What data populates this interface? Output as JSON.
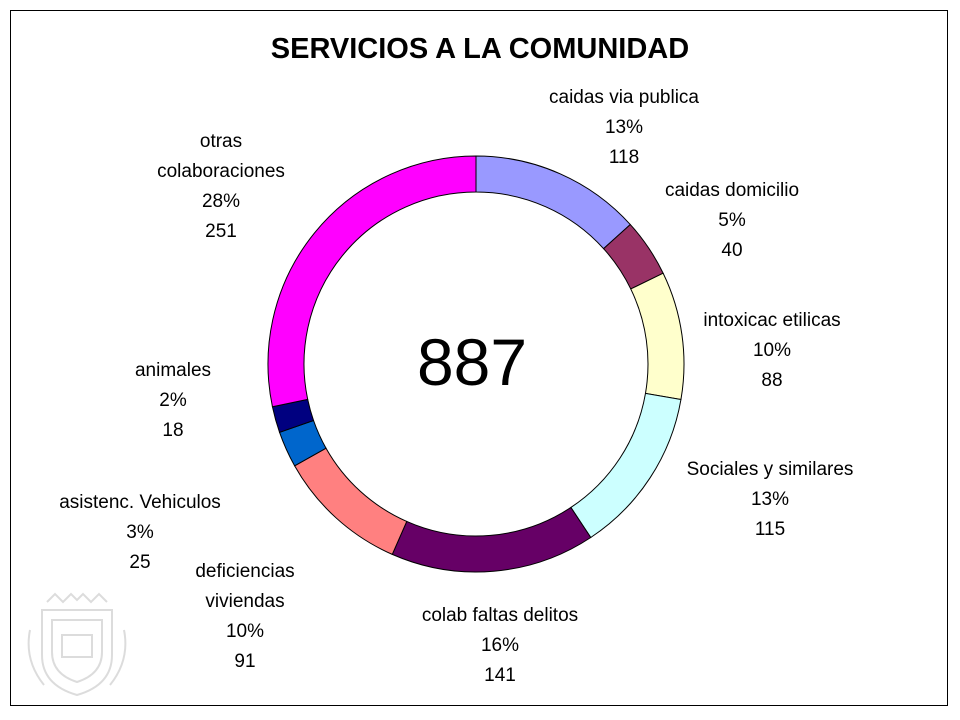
{
  "chart_data": {
    "type": "pie",
    "subtype": "doughnut",
    "title": "SERVICIOS A LA COMUNIDAD",
    "center_label": "887",
    "slices": [
      {
        "label": "caidas via publica",
        "percent": "13%",
        "value": 118,
        "color": "#9999FF"
      },
      {
        "label": "caidas domicilio",
        "percent": "5%",
        "value": 40,
        "color": "#993366"
      },
      {
        "label": "intoxicac etilicas",
        "percent": "10%",
        "value": 88,
        "color": "#FFFFCC"
      },
      {
        "label": "Sociales y similares",
        "percent": "13%",
        "value": 115,
        "color": "#CCFFFF"
      },
      {
        "label": "colab faltas delitos",
        "percent": "16%",
        "value": 141,
        "color": "#660066"
      },
      {
        "label": "deficiencias viviendas",
        "label_lines": [
          "deficiencias",
          "viviendas"
        ],
        "percent": "10%",
        "value": 91,
        "color": "#FF8080"
      },
      {
        "label": "asistenc. Vehiculos",
        "percent": "3%",
        "value": 25,
        "color": "#0066CC"
      },
      {
        "label": "animales",
        "percent": "2%",
        "value": 18,
        "color": "#000080"
      },
      {
        "label": "otras colaboraciones",
        "label_lines": [
          "otras",
          "colaboraciones"
        ],
        "percent": "28%",
        "value": 251,
        "color": "#FF00FF"
      }
    ]
  },
  "watermark": "seal-emblem"
}
